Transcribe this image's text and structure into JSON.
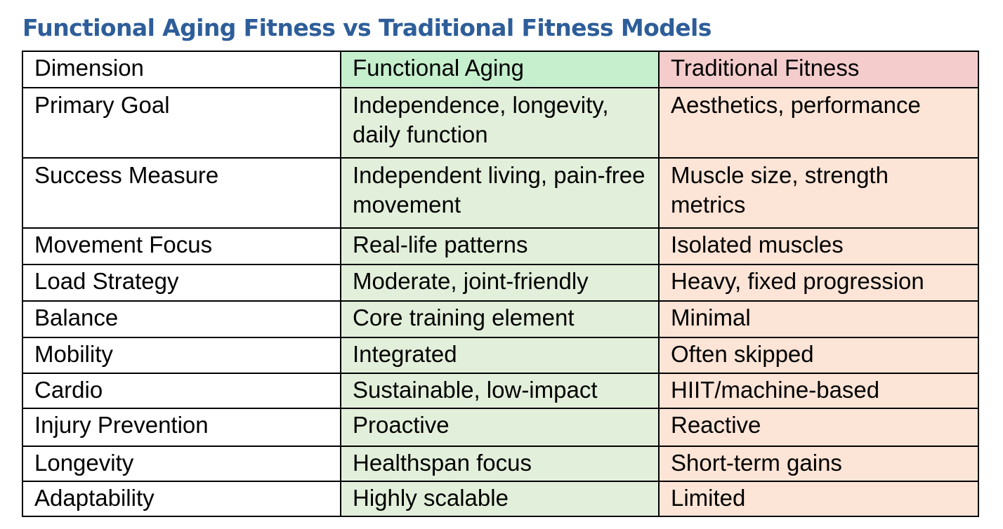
{
  "title": "Functional Aging Fitness vs Traditional Fitness Models",
  "colors": {
    "title": "#2E5E9A",
    "functional_header": "#C6EFCE",
    "functional_cells": "#E2EFDA",
    "traditional_header": "#F4CCCC",
    "traditional_cells": "#FCE4D6",
    "border": "#000000"
  },
  "table": {
    "headers": [
      "Dimension",
      "Functional Aging",
      "Traditional Fitness"
    ],
    "rows": [
      [
        "Primary Goal",
        "Independence, longevity, daily function",
        "Aesthetics, performance"
      ],
      [
        "Success Measure",
        "Independent living, pain-free movement",
        "Muscle size, strength metrics"
      ],
      [
        "Movement Focus",
        "Real-life patterns",
        "Isolated muscles"
      ],
      [
        "Load Strategy",
        "Moderate, joint-friendly",
        "Heavy, fixed progression"
      ],
      [
        "Balance",
        "Core training element",
        "Minimal"
      ],
      [
        "Mobility",
        "Integrated",
        "Often skipped"
      ],
      [
        "Cardio",
        "Sustainable, low-impact",
        "HIIT/machine-based"
      ],
      [
        "Injury Prevention",
        "Proactive",
        "Reactive"
      ],
      [
        "Longevity",
        "Healthspan focus",
        "Short-term gains"
      ],
      [
        "Adaptability",
        "Highly scalable",
        "Limited"
      ]
    ]
  }
}
